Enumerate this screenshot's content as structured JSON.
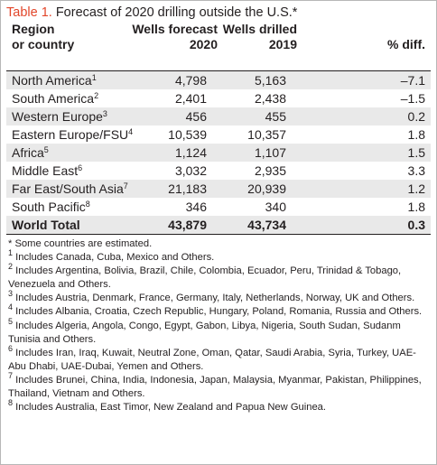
{
  "table": {
    "title_label": "Table 1.",
    "title_text": "Forecast of 2020 drilling outside the U.S.*",
    "headers": {
      "region_line1": "Region",
      "region_line2": "or country",
      "forecast_line1": "Wells forecast",
      "forecast_line2": "2020",
      "drilled_line1": "Wells drilled",
      "drilled_line2": "2019",
      "diff": "% diff."
    },
    "rows": [
      {
        "region": "North America",
        "sup": "1",
        "forecast": "4,798",
        "drilled": "5,163",
        "diff": "–7.1"
      },
      {
        "region": "South America",
        "sup": "2",
        "forecast": "2,401",
        "drilled": "2,438",
        "diff": "–1.5"
      },
      {
        "region": "Western Europe",
        "sup": "3",
        "forecast": "456",
        "drilled": "455",
        "diff": "0.2"
      },
      {
        "region": "Eastern Europe/FSU",
        "sup": "4",
        "forecast": "10,539",
        "drilled": "10,357",
        "diff": "1.8"
      },
      {
        "region": "Africa",
        "sup": "5",
        "forecast": "1,124",
        "drilled": "1,107",
        "diff": "1.5"
      },
      {
        "region": "Middle East",
        "sup": "6",
        "forecast": "3,032",
        "drilled": "2,935",
        "diff": "3.3"
      },
      {
        "region": "Far East/South Asia",
        "sup": "7",
        "forecast": "21,183",
        "drilled": "20,939",
        "diff": "1.2"
      },
      {
        "region": "South Pacific",
        "sup": "8",
        "forecast": "346",
        "drilled": "340",
        "diff": "1.8"
      }
    ],
    "total": {
      "region": "World Total",
      "forecast": "43,879",
      "drilled": "43,734",
      "diff": "0.3"
    },
    "notes": {
      "asterisk": "* Some countries are estimated.",
      "footnotes": [
        {
          "num": "1",
          "text": " Includes Canada, Cuba, Mexico and Others."
        },
        {
          "num": "2",
          "text": " Includes Argentina, Bolivia, Brazil, Chile, Colombia, Ecuador, Peru, Trinidad & Tobago, Venezuela and Others."
        },
        {
          "num": "3",
          "text": " Includes Austria, Denmark, France, Germany, Italy, Netherlands, Norway, UK and Others."
        },
        {
          "num": "4",
          "text": " Includes Albania, Croatia, Czech Republic, Hungary, Poland, Romania, Russia and Others."
        },
        {
          "num": "5",
          "text": " Includes Algeria, Angola, Congo, Egypt, Gabon, Libya, Nigeria, South Sudan, Sudanm Tunisia and Others."
        },
        {
          "num": "6",
          "text": " Includes Iran, Iraq, Kuwait, Neutral Zone, Oman, Qatar, Saudi Arabia, Syria, Turkey, UAE-Abu Dhabi, UAE-Dubai, Yemen and Others."
        },
        {
          "num": "7",
          "text": " Includes Brunei, China, India, Indonesia, Japan, Malaysia, Myanmar, Pakistan, Philippines, Thailand, Vietnam and Others."
        },
        {
          "num": "8",
          "text": " Includes Australia, East Timor, New Zealand and Papua New Guinea."
        }
      ]
    },
    "colors": {
      "title_label": "#e2462a",
      "row_shade": "#e9e9e9",
      "text": "#231f20"
    }
  }
}
